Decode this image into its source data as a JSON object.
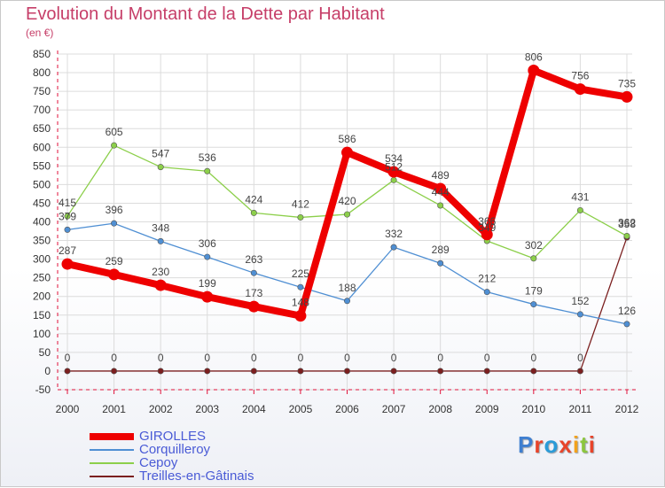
{
  "header": {
    "title": "Evolution du Montant de la Dette par Habitant",
    "subtitle": "(en €)"
  },
  "colors": {
    "title": "#c63e68",
    "axis": "#e0123b",
    "grid": "#dcdcdc",
    "legend_text": "#4a5bd6"
  },
  "logo": {
    "text": "Proxiti",
    "letter_colors": [
      "#3f7fd0",
      "#e8442a",
      "#2a9bd8",
      "#e8442a",
      "#f2a21c",
      "#8cc63e",
      "#e8442a"
    ]
  },
  "chart_data": {
    "type": "line",
    "x": [
      "2000",
      "2001",
      "2002",
      "2003",
      "2004",
      "2005",
      "2006",
      "2007",
      "2008",
      "2009",
      "2010",
      "2011",
      "2012"
    ],
    "ylim": [
      -50,
      850
    ],
    "yticks": [
      "850",
      "800",
      "750",
      "700",
      "650",
      "600",
      "550",
      "500",
      "450",
      "400",
      "350",
      "300",
      "250",
      "200",
      "150",
      "100",
      "50",
      "0",
      "-50"
    ],
    "grid": true,
    "legend_position": "bottom-left",
    "series": [
      {
        "name": "Treilles-en-Gâtinais",
        "color": "#7b1f1f",
        "values": [
          0,
          0,
          0,
          0,
          0,
          0,
          0,
          0,
          0,
          0,
          0,
          0,
          358
        ],
        "labels": [
          "0",
          "0",
          "0",
          "0",
          "0",
          "0",
          "0",
          "0",
          "0",
          "0",
          "0",
          "0",
          "358"
        ]
      },
      {
        "name": "Corquilleroy",
        "color": "#4f8fd3",
        "values": [
          379,
          396,
          348,
          306,
          263,
          225,
          188,
          332,
          289,
          212,
          179,
          152,
          126
        ],
        "labels": [
          "379",
          "396",
          "348",
          "306",
          "263",
          "225",
          "188",
          "332",
          "289",
          "212",
          "179",
          "152",
          "126"
        ]
      },
      {
        "name": "Cepoy",
        "color": "#8ccf4a",
        "values": [
          415,
          605,
          547,
          536,
          424,
          412,
          420,
          512,
          444,
          349,
          302,
          431,
          362
        ],
        "labels": [
          "415",
          "605",
          "547",
          "536",
          "424",
          "412",
          "420",
          "512",
          "444",
          "349",
          "302",
          "431",
          "362"
        ]
      },
      {
        "name": "GIROLLES",
        "color": "#ee0000",
        "values": [
          287,
          259,
          230,
          199,
          173,
          148,
          586,
          534,
          489,
          366,
          806,
          756,
          735
        ],
        "labels": [
          "287",
          "259",
          "230",
          "199",
          "173",
          "148",
          "586",
          "534",
          "489",
          "366",
          "806",
          "756",
          "735"
        ]
      }
    ],
    "legend_order": [
      "GIROLLES",
      "Corquilleroy",
      "Cepoy",
      "Treilles-en-Gâtinais"
    ]
  }
}
